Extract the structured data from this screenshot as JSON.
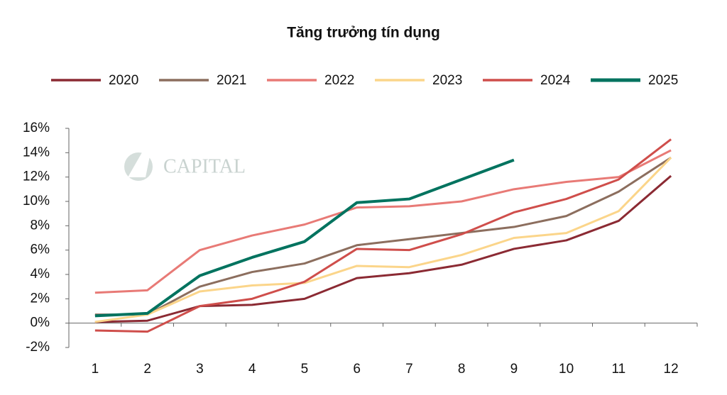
{
  "chart_data": {
    "type": "line",
    "title": "Tăng trưởng tín dụng",
    "watermark": "CAPITAL",
    "categories": [
      "1",
      "2",
      "3",
      "4",
      "5",
      "6",
      "7",
      "8",
      "9",
      "10",
      "11",
      "12"
    ],
    "series": [
      {
        "name": "2020",
        "color": "#8b2a33",
        "values": [
          0.1,
          0.2,
          1.4,
          1.5,
          2.0,
          3.7,
          4.1,
          4.8,
          6.1,
          6.8,
          8.4,
          12.1
        ]
      },
      {
        "name": "2021",
        "color": "#8c6e5e",
        "values": [
          0.7,
          0.7,
          3.0,
          4.2,
          4.9,
          6.4,
          6.9,
          7.4,
          7.9,
          8.8,
          10.8,
          13.6
        ]
      },
      {
        "name": "2022",
        "color": "#e87a76",
        "values": [
          2.5,
          2.7,
          6.0,
          7.2,
          8.1,
          9.5,
          9.6,
          10.0,
          11.0,
          11.6,
          12.0,
          14.2
        ]
      },
      {
        "name": "2023",
        "color": "#fbd58a",
        "values": [
          0.1,
          0.7,
          2.6,
          3.1,
          3.3,
          4.7,
          4.6,
          5.6,
          7.0,
          7.4,
          9.2,
          13.6
        ]
      },
      {
        "name": "2024",
        "color": "#cf4e4b",
        "values": [
          -0.6,
          -0.7,
          1.4,
          2.0,
          3.4,
          6.1,
          6.0,
          7.3,
          9.1,
          10.2,
          11.8,
          15.1
        ]
      },
      {
        "name": "2025",
        "color": "#00735f",
        "values": [
          0.6,
          0.8,
          3.9,
          5.4,
          6.7,
          9.9,
          10.2,
          11.8,
          13.4,
          null,
          null,
          null
        ]
      }
    ],
    "ylim": [
      -2,
      16
    ],
    "yticks": [
      {
        "value": -2,
        "label": "-2%"
      },
      {
        "value": 0,
        "label": "0%"
      },
      {
        "value": 2,
        "label": "2%"
      },
      {
        "value": 4,
        "label": "4%"
      },
      {
        "value": 6,
        "label": "6%"
      },
      {
        "value": 8,
        "label": "8%"
      },
      {
        "value": 10,
        "label": "10%"
      },
      {
        "value": 12,
        "label": "12%"
      },
      {
        "value": 14,
        "label": "14%"
      },
      {
        "value": 16,
        "label": "16%"
      }
    ],
    "legend": "top"
  }
}
